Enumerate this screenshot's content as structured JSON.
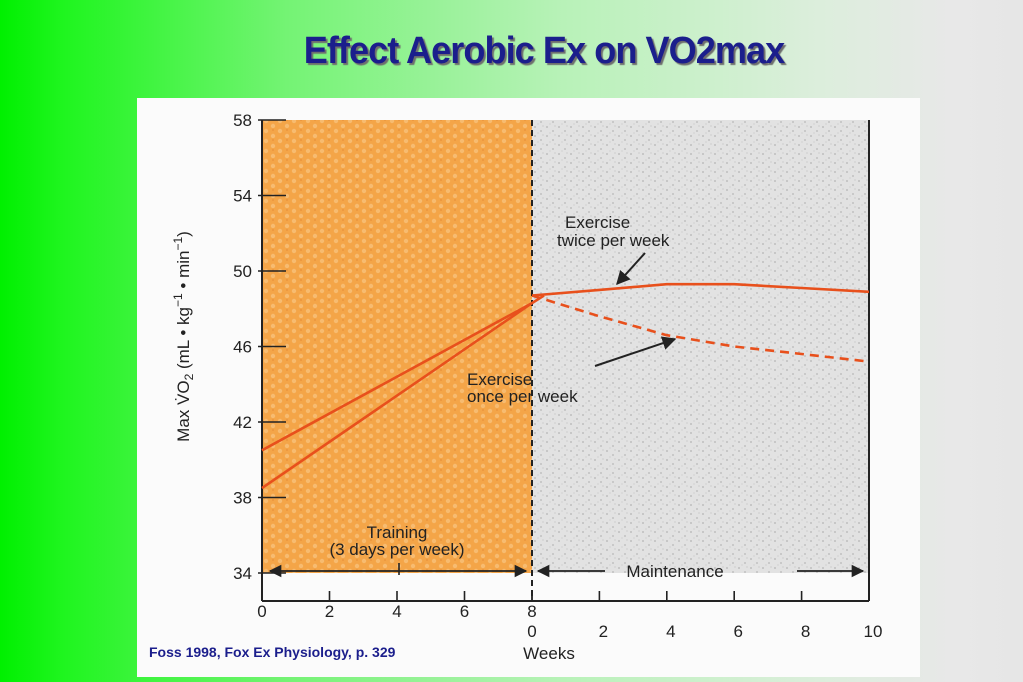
{
  "slide": {
    "title": "Effect Aerobic Ex on VO2max",
    "citation": "Foss 1998, Fox Ex Physiology, p. 329"
  },
  "chart_data": {
    "type": "line",
    "ylabel_main": "Max V̇O",
    "ylabel_sub": "2",
    "ylabel_units": "(mL • kg",
    "ylabel_units2": " • min",
    "ylabel_end": ")",
    "ylabel_sup": "−1",
    "xlabel": "Weeks",
    "ylim": [
      34,
      58
    ],
    "yticks": [
      "58",
      "54",
      "50",
      "46",
      "42",
      "38",
      "34"
    ],
    "yticks_values": [
      58,
      54,
      50,
      46,
      42,
      38,
      34
    ],
    "training_xticks": [
      "0",
      "2",
      "4",
      "6",
      "8"
    ],
    "training_xticks_values": [
      0,
      2,
      4,
      6,
      8
    ],
    "maintenance_xticks": [
      "0",
      "2",
      "4",
      "6",
      "8",
      "10"
    ],
    "maintenance_xticks_values": [
      0,
      2,
      4,
      6,
      8,
      10
    ],
    "phases": [
      {
        "name": "Training",
        "label_line1": "Training",
        "label_line2": "(3 days per week)",
        "weeks": [
          0,
          8
        ],
        "color": "#f4a548"
      },
      {
        "name": "Maintenance",
        "label": "Maintenance",
        "weeks": [
          0,
          10
        ],
        "color": "#d8d8d8"
      }
    ],
    "series": [
      {
        "phase": "training",
        "style": "solid",
        "points": [
          [
            0,
            40.5
          ],
          [
            8,
            48.3
          ]
        ]
      },
      {
        "phase": "training",
        "style": "solid",
        "points": [
          [
            0,
            38.5
          ],
          [
            8,
            48.3
          ]
        ]
      },
      {
        "phase": "maintenance",
        "name": "Exercise twice per week",
        "style": "solid",
        "points": [
          [
            0,
            48.7
          ],
          [
            2,
            49.0
          ],
          [
            4,
            49.3
          ],
          [
            6,
            49.3
          ],
          [
            8,
            49.1
          ],
          [
            10,
            48.9
          ]
        ]
      },
      {
        "phase": "maintenance",
        "name": "Exercise once per week",
        "style": "dashed",
        "points": [
          [
            0,
            48.7
          ],
          [
            2,
            47.6
          ],
          [
            4,
            46.6
          ],
          [
            6,
            46.0
          ],
          [
            8,
            45.6
          ],
          [
            10,
            45.2
          ]
        ]
      }
    ],
    "annotations": {
      "twice_line1": "Exercise",
      "twice_line2": "twice per week",
      "once_line1": "Exercise",
      "once_line2": "once per week"
    },
    "line_color": "#e8501c",
    "grid": false
  }
}
